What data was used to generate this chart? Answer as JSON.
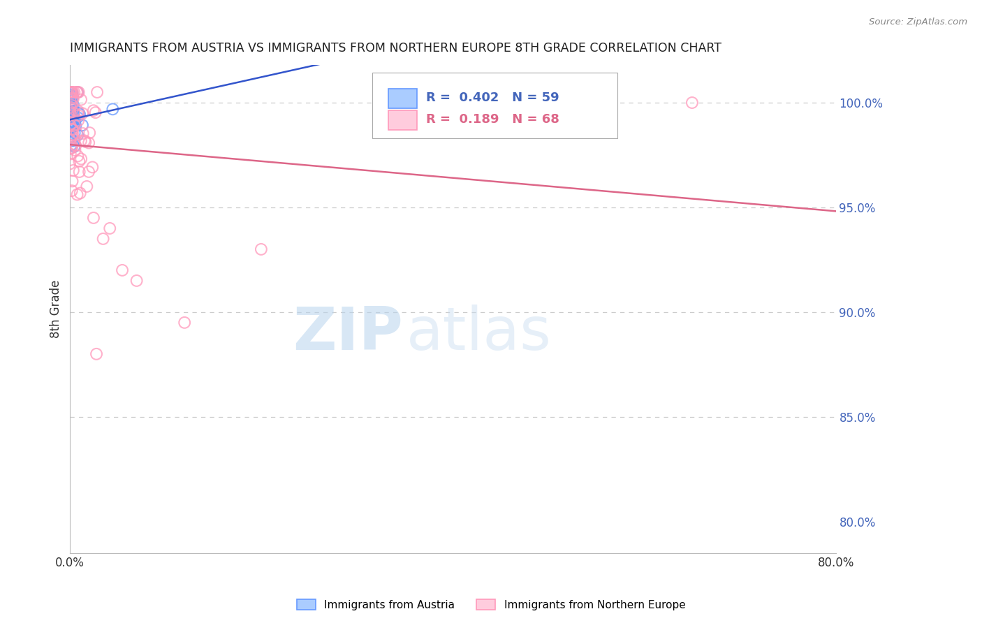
{
  "title": "IMMIGRANTS FROM AUSTRIA VS IMMIGRANTS FROM NORTHERN EUROPE 8TH GRADE CORRELATION CHART",
  "source": "Source: ZipAtlas.com",
  "ylabel": "8th Grade",
  "x_range": [
    0.0,
    80.0
  ],
  "y_range": [
    78.5,
    101.8
  ],
  "y_ticks": [
    80.0,
    85.0,
    90.0,
    95.0,
    100.0
  ],
  "series1_label": "Immigrants from Austria",
  "series1_color": "#6699FF",
  "series1_facecolor": "#AACCFF",
  "series1_line_color": "#3355CC",
  "series1_R": 0.402,
  "series1_N": 59,
  "series2_label": "Immigrants from Northern Europe",
  "series2_color": "#FF99BB",
  "series2_facecolor": "#FFCCDD",
  "series2_line_color": "#DD6688",
  "series2_R": 0.189,
  "series2_N": 68,
  "watermark_zip": "ZIP",
  "watermark_atlas": "atlas",
  "watermark_color_zip": "#C5DCF0",
  "watermark_color_atlas": "#C5DCF0",
  "background_color": "#ffffff",
  "grid_color": "#cccccc",
  "title_color": "#222222",
  "axis_label_color": "#4466BB",
  "source_text": "Source: ZipAtlas.com",
  "source_color": "#888888"
}
